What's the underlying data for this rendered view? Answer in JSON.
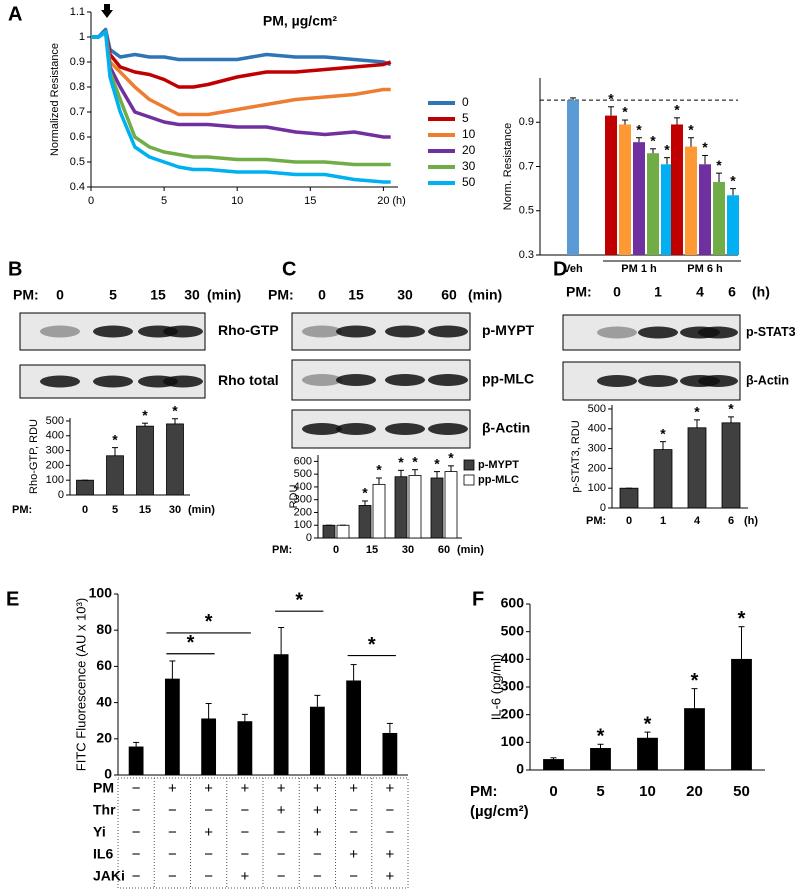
{
  "panel_labels": [
    "A",
    "B",
    "C",
    "D",
    "E",
    "F"
  ],
  "blots": [
    {
      "header": "PM:",
      "lanes": [
        "0",
        "5",
        "15",
        "30"
      ],
      "unit": "(min)",
      "rows": [
        "Rho-GTP",
        "Rho total"
      ]
    },
    {
      "header": "PM:",
      "lanes": [
        "0",
        "15",
        "30",
        "60"
      ],
      "unit": "(min)",
      "rows": [
        "p-MYPT",
        "pp-MLC",
        "β-Actin"
      ]
    },
    {
      "header": "PM:",
      "lanes": [
        "0",
        "1",
        "4",
        "6"
      ],
      "unit": "(h)",
      "rows": [
        "p-STAT3",
        "β-Actin"
      ]
    }
  ],
  "chart_data": [
    {
      "type": "line",
      "title": "PM, µg/cm²",
      "ylabel": "Normalized Resistance",
      "x": [
        0,
        0.5,
        1,
        1.3,
        2,
        3,
        4,
        5,
        6,
        7,
        8,
        10,
        12,
        14,
        16,
        18,
        20,
        20.5
      ],
      "xlim": [
        0,
        21
      ],
      "xticks": [
        0,
        5,
        10,
        15,
        20
      ],
      "x_suffix": "(h)",
      "ylim": [
        0.4,
        1.1
      ],
      "yticks": [
        0.4,
        0.5,
        0.6,
        0.7,
        0.8,
        0.9,
        1,
        1.1
      ],
      "legend": "right",
      "series": [
        {
          "name": "0",
          "color": "#2e75b6",
          "values": [
            1.0,
            1.0,
            1.03,
            0.95,
            0.92,
            0.93,
            0.92,
            0.92,
            0.91,
            0.91,
            0.91,
            0.91,
            0.93,
            0.92,
            0.92,
            0.91,
            0.9,
            0.89
          ]
        },
        {
          "name": "5",
          "color": "#c00000",
          "values": [
            1.0,
            1.0,
            1.02,
            0.93,
            0.88,
            0.86,
            0.85,
            0.83,
            0.8,
            0.8,
            0.81,
            0.84,
            0.86,
            0.86,
            0.87,
            0.88,
            0.89,
            0.9
          ]
        },
        {
          "name": "10",
          "color": "#ed7d31",
          "values": [
            1.0,
            1.0,
            1.02,
            0.9,
            0.86,
            0.8,
            0.75,
            0.72,
            0.69,
            0.69,
            0.69,
            0.71,
            0.73,
            0.75,
            0.76,
            0.77,
            0.79,
            0.79
          ]
        },
        {
          "name": "20",
          "color": "#7030a0",
          "values": [
            1.0,
            1.0,
            1.02,
            0.88,
            0.8,
            0.7,
            0.68,
            0.66,
            0.65,
            0.65,
            0.65,
            0.64,
            0.64,
            0.62,
            0.61,
            0.62,
            0.6,
            0.6
          ]
        },
        {
          "name": "30",
          "color": "#70ad47",
          "values": [
            1.0,
            1.0,
            1.02,
            0.86,
            0.75,
            0.6,
            0.56,
            0.54,
            0.53,
            0.52,
            0.52,
            0.51,
            0.51,
            0.5,
            0.5,
            0.49,
            0.49,
            0.49
          ]
        },
        {
          "name": "50",
          "color": "#00b0f0",
          "values": [
            1.0,
            1.0,
            1.02,
            0.84,
            0.7,
            0.56,
            0.52,
            0.5,
            0.48,
            0.47,
            0.47,
            0.46,
            0.46,
            0.45,
            0.45,
            0.43,
            0.42,
            0.42
          ]
        }
      ]
    },
    {
      "type": "bar",
      "ylabel": "Norm. Resistance",
      "ylim": [
        0.3,
        1.1
      ],
      "yticks": [
        0.3,
        0.5,
        0.7,
        0.9
      ],
      "reference_line": 1,
      "categories": [
        "Veh",
        "PM 1 h",
        "PM 6 h"
      ],
      "series": [
        {
          "color": "#5b9bd5",
          "values": [
            1.0,
            null,
            null
          ],
          "errors": [
            0.01,
            null,
            null
          ]
        },
        {
          "color": "#c00000",
          "values": [
            null,
            0.93,
            0.89
          ],
          "errors": [
            null,
            0.04,
            0.03
          ],
          "significance": [
            null,
            "*",
            "*"
          ]
        },
        {
          "color": "#ff9933",
          "values": [
            null,
            0.89,
            0.79
          ],
          "errors": [
            null,
            0.02,
            0.04
          ],
          "significance": [
            null,
            "*",
            "*"
          ]
        },
        {
          "color": "#7030a0",
          "values": [
            null,
            0.81,
            0.71
          ],
          "errors": [
            null,
            0.02,
            0.04
          ],
          "significance": [
            null,
            "*",
            "*"
          ]
        },
        {
          "color": "#70ad47",
          "values": [
            null,
            0.76,
            0.63
          ],
          "errors": [
            null,
            0.02,
            0.04
          ],
          "significance": [
            null,
            "*",
            "*"
          ]
        },
        {
          "color": "#00b0f0",
          "values": [
            null,
            0.71,
            0.57
          ],
          "errors": [
            null,
            0.03,
            0.03
          ],
          "significance": [
            null,
            "*",
            "*"
          ]
        }
      ]
    },
    {
      "type": "bar",
      "ylabel": "Rho-GTP, RDU",
      "ylim": [
        0,
        520
      ],
      "yticks": [
        0,
        100,
        200,
        300,
        400,
        500
      ],
      "x_prefix": "PM:",
      "x_suffix": "(min)",
      "categories": [
        "0",
        "5",
        "15",
        "30"
      ],
      "series": [
        {
          "color": "#404040",
          "values": [
            100,
            265,
            465,
            480
          ],
          "errors": [
            0,
            55,
            20,
            35
          ],
          "significance": [
            null,
            "*",
            "*",
            "*"
          ]
        }
      ]
    },
    {
      "type": "bar",
      "ylabel": "RDU",
      "ylim": [
        0,
        650
      ],
      "yticks": [
        0,
        100,
        200,
        300,
        400,
        500,
        600
      ],
      "x_prefix": "PM:",
      "x_suffix": "(min)",
      "categories": [
        "0",
        "15",
        "30",
        "60"
      ],
      "legend": "top-right",
      "series": [
        {
          "name": "p-MYPT",
          "color": "#404040",
          "values": [
            100,
            255,
            480,
            470
          ],
          "errors": [
            0,
            35,
            50,
            50
          ],
          "significance": [
            null,
            "*",
            "*",
            "*"
          ]
        },
        {
          "name": "pp-MLC",
          "color": "#ffffff",
          "values": [
            100,
            420,
            490,
            520
          ],
          "errors": [
            0,
            50,
            45,
            45
          ],
          "significance": [
            null,
            "*",
            "*",
            "*"
          ]
        }
      ]
    },
    {
      "type": "bar",
      "ylabel": "p-STAT3, RDU",
      "ylim": [
        0,
        520
      ],
      "yticks": [
        0,
        100,
        200,
        300,
        400,
        500
      ],
      "x_prefix": "PM:",
      "x_suffix": "(h)",
      "categories": [
        "0",
        "1",
        "4",
        "6"
      ],
      "series": [
        {
          "color": "#404040",
          "values": [
            100,
            295,
            405,
            430
          ],
          "errors": [
            0,
            40,
            40,
            30
          ],
          "significance": [
            null,
            "*",
            "*",
            "*"
          ]
        }
      ]
    },
    {
      "type": "bar",
      "ylabel": "FITC Fluorescence (AU x 10³)",
      "ylim": [
        0,
        100
      ],
      "yticks": [
        0,
        20,
        40,
        60,
        80,
        100
      ],
      "categories": [
        null,
        null,
        null,
        null,
        null,
        null,
        null,
        null
      ],
      "series": [
        {
          "color": "#000000",
          "values": [
            15.5,
            53,
            31,
            29.5,
            66.5,
            37.5,
            52,
            23
          ],
          "errors": [
            2.5,
            10,
            8.5,
            4,
            15,
            6.5,
            9,
            5.5
          ]
        }
      ],
      "brackets": [
        {
          "from": 1,
          "to": 3,
          "y": 78.5,
          "label": "*"
        },
        {
          "from": 1,
          "to": 2,
          "y": 67,
          "label": "*"
        },
        {
          "from": 4,
          "to": 5,
          "y": 90.5,
          "label": "*"
        },
        {
          "from": 6,
          "to": 7,
          "y": 66,
          "label": "*"
        }
      ],
      "conditions": [
        {
          "label": "PM",
          "signs": [
            "−",
            "+",
            "+",
            "+",
            "+",
            "+",
            "+",
            "+"
          ]
        },
        {
          "label": "Thr",
          "signs": [
            "−",
            "−",
            "−",
            "−",
            "+",
            "+",
            "−",
            "−"
          ]
        },
        {
          "label": "Yi",
          "signs": [
            "−",
            "−",
            "+",
            "−",
            "−",
            "+",
            "−",
            "−"
          ]
        },
        {
          "label": "IL6",
          "signs": [
            "−",
            "−",
            "−",
            "−",
            "−",
            "−",
            "+",
            "+"
          ]
        },
        {
          "label": "JAKi",
          "signs": [
            "−",
            "−",
            "−",
            "+",
            "−",
            "−",
            "−",
            "+"
          ]
        }
      ]
    },
    {
      "type": "bar",
      "ylabel": "IL-6 (pg/ml)",
      "ylim": [
        0,
        600
      ],
      "yticks": [
        0,
        100,
        200,
        300,
        400,
        500,
        600
      ],
      "x_prefix": "PM:",
      "x_suffix": "(µg/cm²)",
      "categories": [
        "0",
        "5",
        "10",
        "20",
        "50"
      ],
      "series": [
        {
          "color": "#000000",
          "values": [
            38,
            78,
            115,
            222,
            400
          ],
          "errors": [
            6,
            15,
            22,
            72,
            118
          ],
          "significance": [
            null,
            "*",
            "*",
            "*",
            "*"
          ]
        }
      ]
    }
  ]
}
